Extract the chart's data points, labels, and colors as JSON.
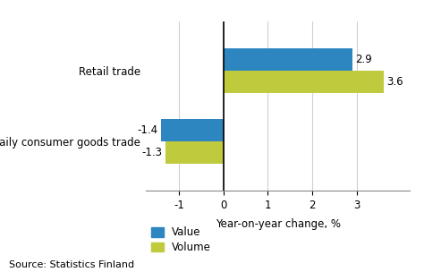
{
  "categories": [
    "Daily consumer goods trade",
    "Retail trade"
  ],
  "value_data": [
    -1.4,
    2.9
  ],
  "volume_data": [
    -1.3,
    3.6
  ],
  "value_color": "#2E86C1",
  "volume_color": "#BFCA3C",
  "xlabel": "Year-on-year change, %",
  "xlim": [
    -1.75,
    4.2
  ],
  "xticks": [
    -1,
    0,
    1,
    2,
    3
  ],
  "bar_height": 0.32,
  "source_text": "Source: Statistics Finland",
  "legend_value": "Value",
  "legend_volume": "Volume",
  "background_color": "#ffffff",
  "grid_color": "#d0d0d0",
  "value_labels": [
    "-1.4",
    "2.9"
  ],
  "volume_labels": [
    "-1.3",
    "3.6"
  ]
}
